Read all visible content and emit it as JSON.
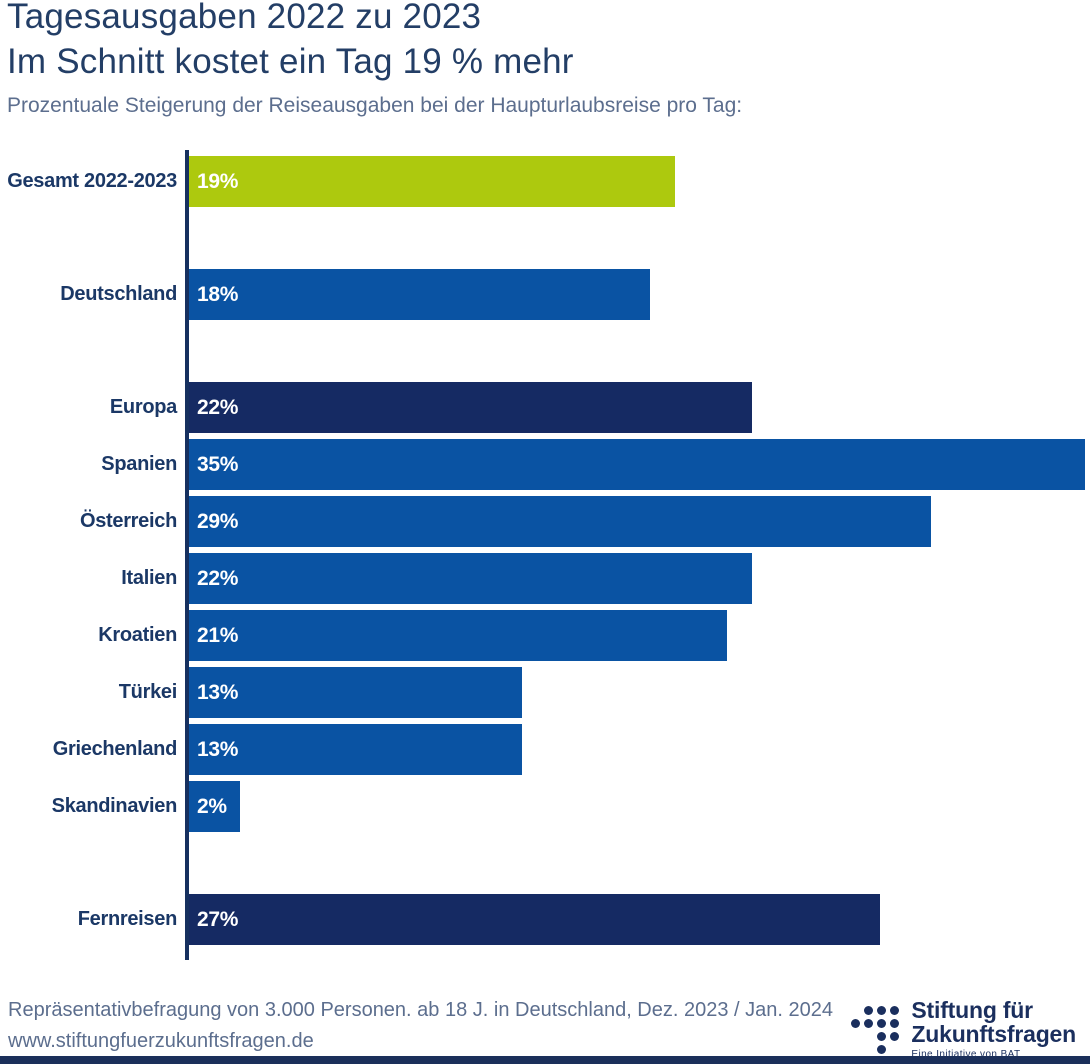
{
  "chart_data": {
    "type": "bar",
    "orientation": "horizontal",
    "title_line1": "Tagesausgaben 2022 zu 2023",
    "title_line2": "Im Schnitt kostet ein Tag 19 % mehr",
    "subtitle": "Prozentuale Steigerung der Reiseausgaben bei der Haupturlaubsreise pro Tag:",
    "value_suffix": "%",
    "xlim": [
      0,
      35.2
    ],
    "grid": false,
    "items": [
      {
        "label": "Gesamt 2022-2023",
        "value": 19,
        "color": "highlight",
        "group": "gesamt"
      },
      {
        "label": "Deutschland",
        "value": 18,
        "color": "primary",
        "group": "deutschland"
      },
      {
        "label": "Europa",
        "value": 22,
        "color": "dark",
        "group": "europa"
      },
      {
        "label": "Spanien",
        "value": 35,
        "color": "primary",
        "group": "europa"
      },
      {
        "label": "Österreich",
        "value": 29,
        "color": "primary",
        "group": "europa"
      },
      {
        "label": "Italien",
        "value": 22,
        "color": "primary",
        "group": "europa"
      },
      {
        "label": "Kroatien",
        "value": 21,
        "color": "primary",
        "group": "europa"
      },
      {
        "label": "Türkei",
        "value": 13,
        "color": "primary",
        "group": "europa"
      },
      {
        "label": "Griechenland",
        "value": 13,
        "color": "primary",
        "group": "europa"
      },
      {
        "label": "Skandinavien",
        "value": 2,
        "color": "primary",
        "group": "europa"
      },
      {
        "label": "Fernreisen",
        "value": 27,
        "color": "dark",
        "group": "fernreisen"
      }
    ]
  },
  "palette": {
    "highlight": "#adc90e",
    "primary": "#0a53a3",
    "dark": "#152a63",
    "axis": "#16305f"
  },
  "footer": {
    "line1": "Repräsentativbefragung von 3.000 Personen. ab 18 J. in Deutschland, Dez. 2023 / Jan. 2024",
    "line2": "www.stiftungfuerzukunftsfragen.de"
  },
  "logo": {
    "name_line1": "Stiftung für",
    "name_line2": "Zukunftsfragen",
    "tagline": "Eine Initiative von BAT"
  }
}
